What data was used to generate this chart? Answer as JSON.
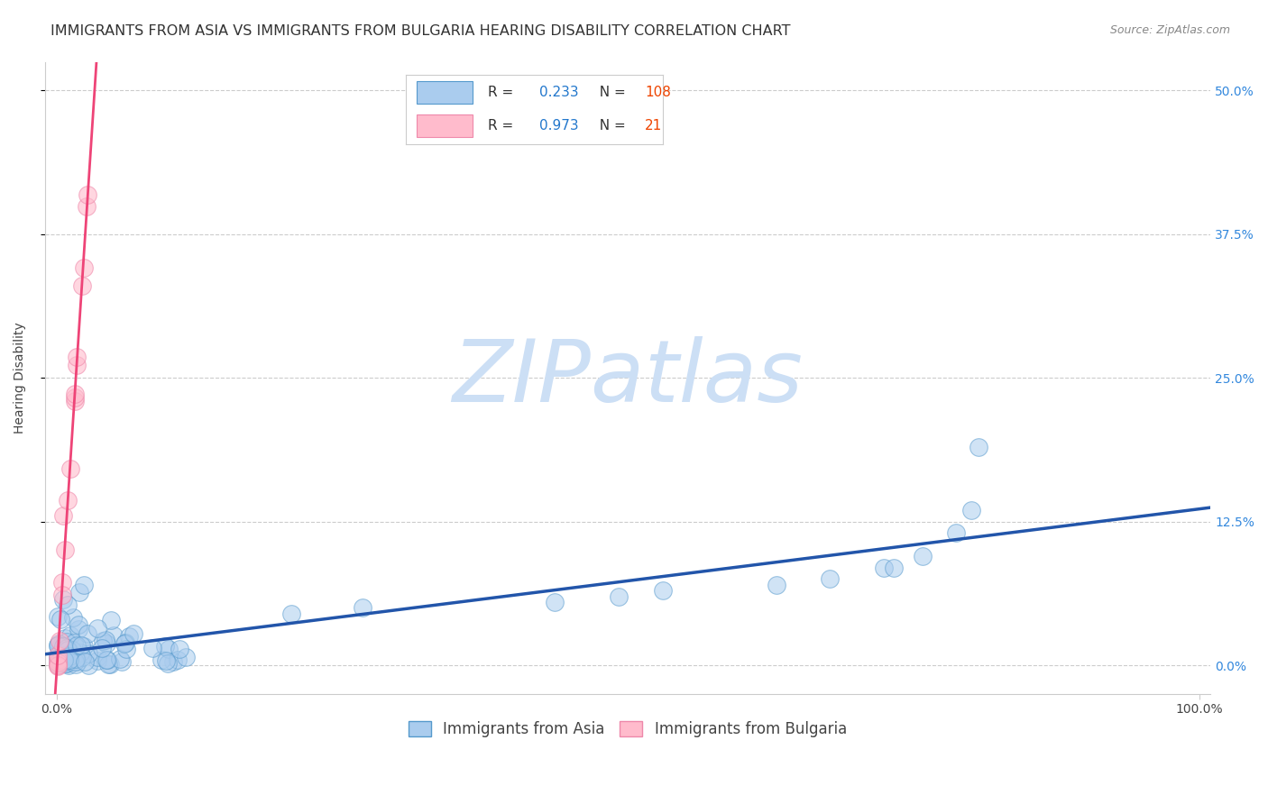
{
  "title": "IMMIGRANTS FROM ASIA VS IMMIGRANTS FROM BULGARIA HEARING DISABILITY CORRELATION CHART",
  "source": "Source: ZipAtlas.com",
  "ylabel": "Hearing Disability",
  "xlim": [
    -0.01,
    1.01
  ],
  "ylim": [
    -0.025,
    0.525
  ],
  "xticks": [
    0.0,
    1.0
  ],
  "xtick_labels": [
    "0.0%",
    "100.0%"
  ],
  "yticks": [
    0.0,
    0.125,
    0.25,
    0.375,
    0.5
  ],
  "ytick_labels": [
    "0.0%",
    "12.5%",
    "25.0%",
    "37.5%",
    "50.0%"
  ],
  "asia_color": "#aaccee",
  "asia_edge_color": "#5599cc",
  "asia_line_color": "#2255aa",
  "bulgaria_color": "#ffbbcc",
  "bulgaria_edge_color": "#ee88aa",
  "bulgaria_line_color": "#ee4477",
  "asia_R": 0.233,
  "asia_N": 108,
  "bulgaria_R": 0.973,
  "bulgaria_N": 21,
  "legend_R_color": "#2277cc",
  "legend_N_color": "#ee4400",
  "background_color": "#ffffff",
  "grid_color": "#cccccc",
  "watermark": "ZIPatlas",
  "watermark_color": "#ccdff5",
  "title_fontsize": 11.5,
  "axis_label_fontsize": 10,
  "tick_fontsize": 10,
  "legend_fontsize": 12,
  "right_tick_color": "#3388dd"
}
